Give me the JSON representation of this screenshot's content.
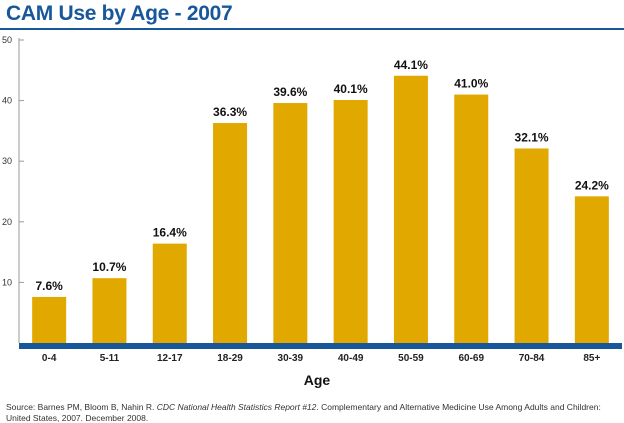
{
  "chart_data": {
    "type": "bar",
    "title": "CAM Use by Age - 2007",
    "xlabel": "Age",
    "ylabel": "",
    "categories": [
      "0-4",
      "5-11",
      "12-17",
      "18-29",
      "30-39",
      "40-49",
      "50-59",
      "60-69",
      "70-84",
      "85+"
    ],
    "values": [
      7.6,
      10.7,
      16.4,
      36.3,
      39.6,
      40.1,
      44.1,
      41.0,
      32.1,
      24.2
    ],
    "data_labels": [
      "7.6%",
      "10.7%",
      "16.4%",
      "36.3%",
      "39.6%",
      "40.1%",
      "44.1%",
      "41.0%",
      "32.1%",
      "24.2%"
    ],
    "yticks": [
      10,
      20,
      30,
      40,
      50
    ],
    "ylim": [
      0,
      50
    ],
    "grid": false,
    "legend": "none",
    "colors": {
      "bar": "#e1a900",
      "baseline": "#17579a",
      "title": "#17579a",
      "axis": "#9a9a9a"
    }
  },
  "source": {
    "prefix": "Source: Barnes PM, Bloom B, Nahin R. ",
    "italic": "CDC National Health Statistics Report #12",
    "suffix": ". Complementary and Alternative Medicine Use Among Adults and Children: United States, 2007. December 2008."
  }
}
